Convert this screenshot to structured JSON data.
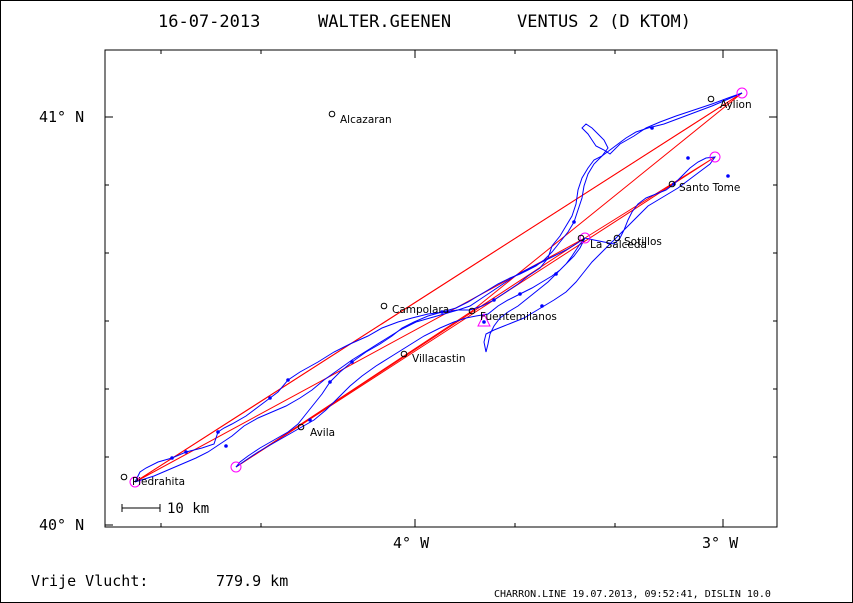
{
  "header": {
    "date": "16-07-2013",
    "pilot": "WALTER.GEENEN",
    "glider": "VENTUS 2 (D KTOM)"
  },
  "axes": {
    "lat_labels": [
      "41° N",
      "40° N"
    ],
    "lon_labels": [
      "4° W",
      "3° W"
    ]
  },
  "scale_bar": {
    "label": "10 km"
  },
  "places": [
    {
      "name": "Alcazaran"
    },
    {
      "name": "Aylion"
    },
    {
      "name": "Santo Tome"
    },
    {
      "name": "Sotillos"
    },
    {
      "name": "La Salceda"
    },
    {
      "name": "Campolara"
    },
    {
      "name": "Fuentemilanos"
    },
    {
      "name": "Villacastin"
    },
    {
      "name": "Avila"
    },
    {
      "name": "Piedrahita"
    }
  ],
  "footer": {
    "distance_label": "Vrije Vlucht:",
    "distance_value": "779.9 km",
    "credit": "CHARRON.LINE 19.07.2013, 09:52:41, DISLIN 10.0"
  },
  "colors": {
    "track": "#0000ff",
    "task_line": "#ff0000",
    "turnpoint": "#ff00ff",
    "axes": "#000000"
  }
}
